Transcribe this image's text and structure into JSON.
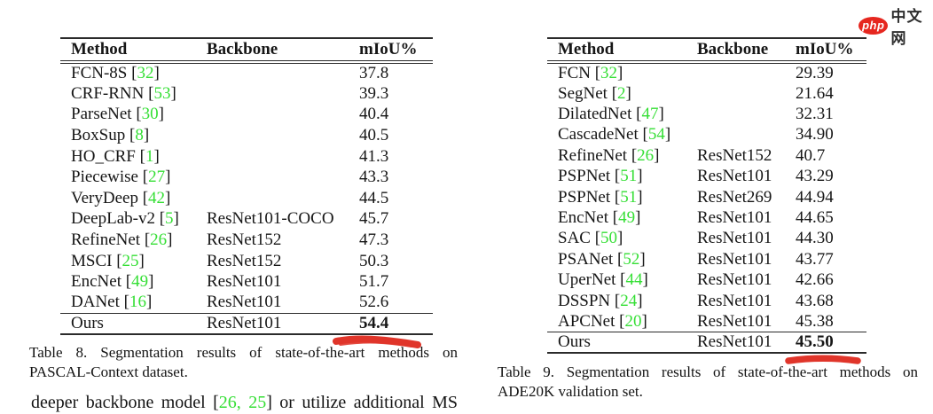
{
  "logo": {
    "php": "php",
    "cn": "中文网",
    "oval_color": "#e6271f"
  },
  "colors": {
    "citation_green": "#35df35",
    "marker_red": "#e0352a"
  },
  "table8": {
    "headers": [
      "Method",
      "Backbone",
      "mIoU%"
    ],
    "rows": [
      {
        "method": "FCN-8S",
        "cite": "32",
        "backbone": "",
        "miou": "37.8"
      },
      {
        "method": "CRF-RNN",
        "cite": "53",
        "backbone": "",
        "miou": "39.3"
      },
      {
        "method": "ParseNet",
        "cite": "30",
        "backbone": "",
        "miou": "40.4"
      },
      {
        "method": "BoxSup",
        "cite": "8",
        "backbone": "",
        "miou": "40.5"
      },
      {
        "method": "HO_CRF",
        "cite": "1",
        "backbone": "",
        "miou": "41.3"
      },
      {
        "method": "Piecewise",
        "cite": "27",
        "backbone": "",
        "miou": "43.3"
      },
      {
        "method": "VeryDeep",
        "cite": "42",
        "backbone": "",
        "miou": "44.5"
      },
      {
        "method": "DeepLab-v2",
        "cite": "5",
        "backbone": "ResNet101-COCO",
        "miou": "45.7"
      },
      {
        "method": "RefineNet",
        "cite": "26",
        "backbone": "ResNet152",
        "miou": "47.3"
      },
      {
        "method": "MSCI",
        "cite": "25",
        "backbone": "ResNet152",
        "miou": "50.3"
      },
      {
        "method": "EncNet",
        "cite": "49",
        "backbone": "ResNet101",
        "miou": "51.7"
      },
      {
        "method": "DANet",
        "cite": "16",
        "backbone": "ResNet101",
        "miou": "52.6"
      },
      {
        "method": "Ours",
        "cite": "",
        "backbone": "ResNet101",
        "miou": "54.4",
        "ours": true
      }
    ],
    "caption_lines": [
      "Table 8. Segmentation results of state-of-the-art methods on",
      "PASCAL-Context dataset."
    ]
  },
  "table9": {
    "headers": [
      "Method",
      "Backbone",
      "mIoU%"
    ],
    "rows": [
      {
        "method": "FCN",
        "cite": "32",
        "backbone": "",
        "miou": "29.39"
      },
      {
        "method": "SegNet",
        "cite": "2",
        "backbone": "",
        "miou": "21.64"
      },
      {
        "method": "DilatedNet",
        "cite": "47",
        "backbone": "",
        "miou": "32.31"
      },
      {
        "method": "CascadeNet",
        "cite": "54",
        "backbone": "",
        "miou": "34.90"
      },
      {
        "method": "RefineNet",
        "cite": "26",
        "backbone": "ResNet152",
        "miou": "40.7"
      },
      {
        "method": "PSPNet",
        "cite": "51",
        "backbone": "ResNet101",
        "miou": "43.29"
      },
      {
        "method": "PSPNet",
        "cite": "51",
        "backbone": "ResNet269",
        "miou": "44.94"
      },
      {
        "method": "EncNet",
        "cite": "49",
        "backbone": "ResNet101",
        "miou": "44.65"
      },
      {
        "method": "SAC",
        "cite": "50",
        "backbone": "ResNet101",
        "miou": "44.30"
      },
      {
        "method": "PSANet",
        "cite": "52",
        "backbone": "ResNet101",
        "miou": "43.77"
      },
      {
        "method": "UperNet",
        "cite": "44",
        "backbone": "ResNet101",
        "miou": "42.66"
      },
      {
        "method": "DSSPN",
        "cite": "24",
        "backbone": "ResNet101",
        "miou": "43.68"
      },
      {
        "method": "APCNet",
        "cite": "20",
        "backbone": "ResNet101",
        "miou": "45.38"
      },
      {
        "method": "Ours",
        "cite": "",
        "backbone": "ResNet101",
        "miou": "45.50",
        "ours": true
      }
    ],
    "caption_lines": [
      "Table 9. Segmentation results of state-of-the-art methods on",
      "ADE20K validation set."
    ]
  },
  "body_text": {
    "prefix": "deeper backbone model [",
    "cites": "26, 25",
    "suffix": "] or utilize additional MS"
  }
}
